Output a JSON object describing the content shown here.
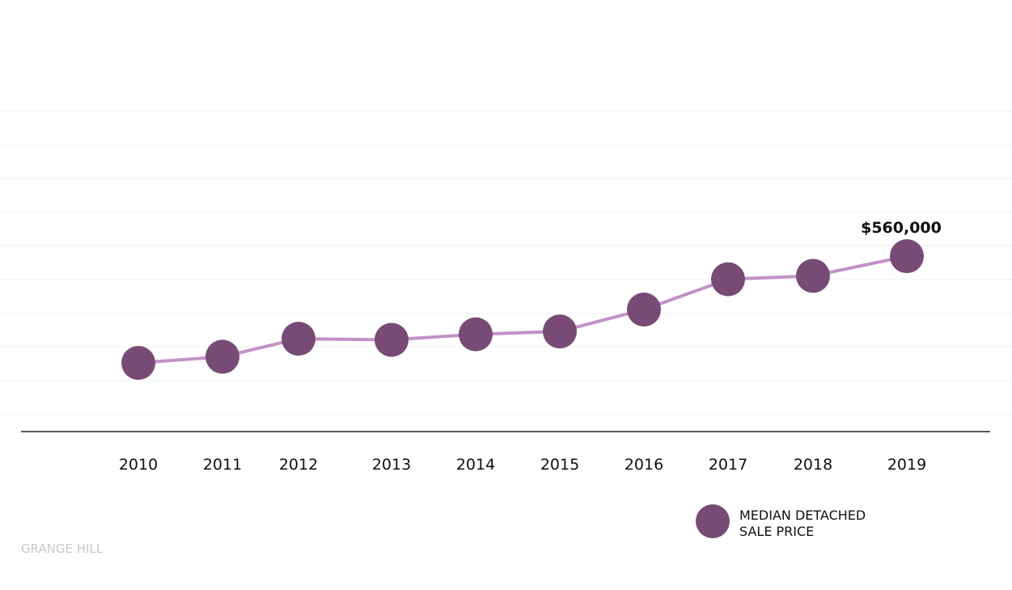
{
  "chart_data": {
    "type": "line",
    "categories": [
      "2010",
      "2011",
      "2012",
      "2013",
      "2014",
      "2015",
      "2016",
      "2017",
      "2018",
      "2019"
    ],
    "series": [
      {
        "name": "MEDIAN DETACHED SALE PRICE",
        "values": [
          370000,
          381000,
          413000,
          411000,
          421000,
          426000,
          465000,
          519000,
          525000,
          560000
        ]
      }
    ],
    "annotations": [
      {
        "category": "2019",
        "text": "$560,000"
      }
    ],
    "legend": {
      "position": "bottom-right",
      "lines": [
        "MEDIAN DETACHED",
        "SALE PRICE"
      ]
    },
    "grid": true,
    "title": "",
    "xlabel": "",
    "ylabel": ""
  },
  "footer": {
    "watermark": "GRANGE HILL"
  },
  "colors": {
    "marker": "#774b76",
    "line": "#c391c7",
    "axis": "#222222",
    "grid": "#f1f1f1",
    "watermark": "#c8c8c8"
  }
}
